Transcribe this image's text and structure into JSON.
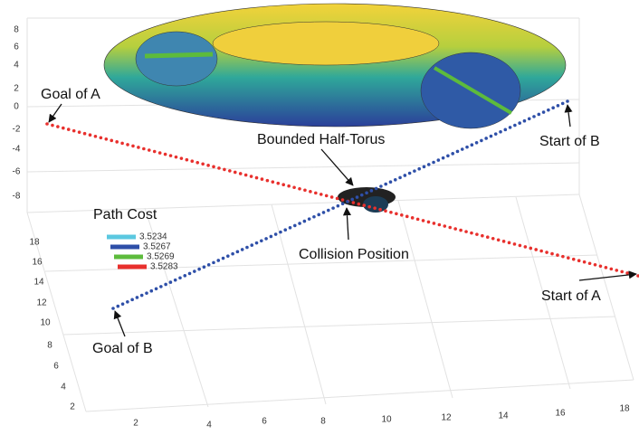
{
  "axes": {
    "z_ticks": [
      8,
      6,
      4,
      2,
      0,
      -2,
      -4,
      -6,
      -8
    ],
    "y_ticks": [
      18,
      16,
      14,
      12,
      10,
      8,
      6,
      4,
      2
    ],
    "x_ticks": [
      2,
      4,
      6,
      8,
      10,
      12,
      14,
      16,
      18
    ]
  },
  "annotations": {
    "goal_a": "Goal of A",
    "start_b": "Start of B",
    "half_torus": "Bounded Half-Torus",
    "collision": "Collision Position",
    "start_a": "Start of A",
    "goal_b": "Goal of B"
  },
  "legend": {
    "title": "Path Cost",
    "entries": [
      {
        "label": "3.5234",
        "color": "#5bc8e0"
      },
      {
        "label": "3.5267",
        "color": "#2e4fa8"
      },
      {
        "label": "3.5269",
        "color": "#5dbb3c"
      },
      {
        "label": "3.5283",
        "color": "#e8302d"
      }
    ]
  }
}
